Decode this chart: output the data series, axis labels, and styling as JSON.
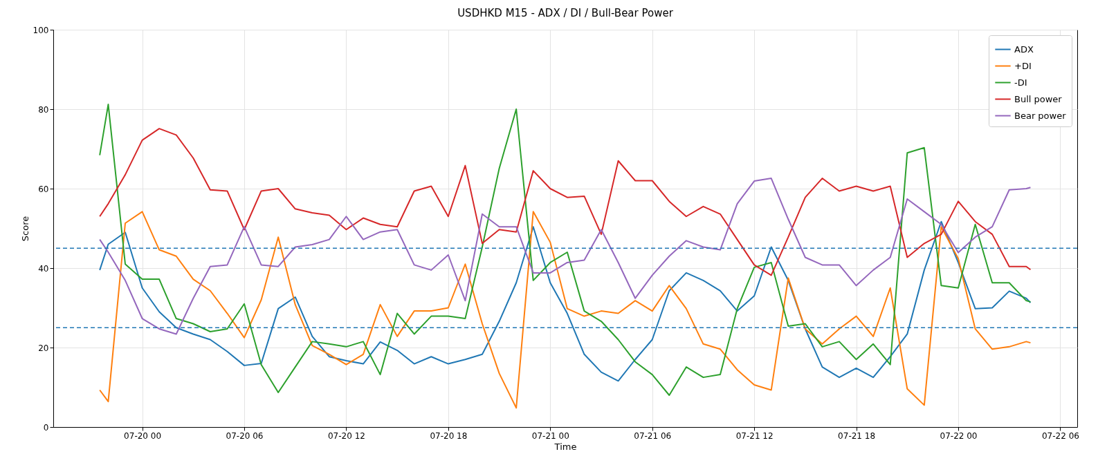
{
  "chart_data": {
    "type": "line",
    "title": "USDHKD M15 - ADX / DI / Bull-Bear Power",
    "xlabel": "Time",
    "ylabel": "Score",
    "x": [
      "--07-19T21:30",
      "--07-19T22:00",
      "--07-19T23:00",
      "--07-20T00:00",
      "--07-20T01:00",
      "--07-20T02:00",
      "--07-20T03:00",
      "--07-20T04:00",
      "--07-20T05:00",
      "--07-20T06:00",
      "--07-20T07:00",
      "--07-20T08:00",
      "--07-20T09:00",
      "--07-20T10:00",
      "--07-20T11:00",
      "--07-20T12:00",
      "--07-20T13:00",
      "--07-20T14:00",
      "--07-20T15:00",
      "--07-20T16:00",
      "--07-20T17:00",
      "--07-20T18:00",
      "--07-20T19:00",
      "--07-20T20:00",
      "--07-20T21:00",
      "--07-20T22:00",
      "--07-20T23:00",
      "--07-21T00:00",
      "--07-21T01:00",
      "--07-21T02:00",
      "--07-21T03:00",
      "--07-21T04:00",
      "--07-21T05:00",
      "--07-21T06:00",
      "--07-21T07:00",
      "--07-21T08:00",
      "--07-21T09:00",
      "--07-21T10:00",
      "--07-21T11:00",
      "--07-21T12:00",
      "--07-21T13:00",
      "--07-21T14:00",
      "--07-21T15:00",
      "--07-21T16:00",
      "--07-21T17:00",
      "--07-21T18:00",
      "--07-21T19:00",
      "--07-21T20:00",
      "--07-21T21:00",
      "--07-21T22:00",
      "--07-21T23:00",
      "--07-22T00:00",
      "--07-22T01:00",
      "--07-22T02:00",
      "--07-22T03:00",
      "--07-22T04:00",
      "--07-22T04:15"
    ],
    "series": [
      {
        "name": "ADX",
        "color": "#1f77b4",
        "values": [
          39.5,
          46,
          49,
          35,
          29,
          25,
          23.4,
          22,
          19,
          15.5,
          16,
          29.8,
          32.7,
          22.8,
          17.7,
          16.7,
          15.9,
          21.4,
          19.3,
          15.9,
          17.7,
          15.9,
          17,
          18.3,
          26.6,
          36.3,
          50.4,
          36.3,
          28.6,
          18.3,
          13.8,
          11.6,
          17,
          22,
          34.3,
          38.8,
          36.9,
          34.3,
          29.2,
          33,
          45.3,
          36.9,
          24.7,
          15.1,
          12.5,
          14.8,
          12.5,
          17.7,
          23.4,
          39.5,
          51.7,
          41.4,
          29.8,
          30,
          34.2,
          32.4,
          31.3
        ]
      },
      {
        "name": "+DI",
        "color": "#ff7f0e",
        "values": [
          9.3,
          6.4,
          51.3,
          54.2,
          44.6,
          43,
          37.2,
          34.3,
          28.6,
          22.5,
          32,
          47.8,
          30.8,
          20.5,
          18.3,
          15.7,
          18.3,
          30.8,
          22.8,
          29.2,
          29.2,
          30,
          41,
          26,
          13.5,
          4.8,
          54.2,
          46.5,
          29.8,
          27.9,
          29.2,
          28.6,
          31.8,
          29.2,
          35.6,
          29.8,
          20.9,
          19.6,
          14.4,
          10.6,
          9.3,
          37.5,
          24.7,
          20.9,
          24.7,
          27.9,
          22.8,
          35,
          9.6,
          5.5,
          50.4,
          42.4,
          24.7,
          19.6,
          20.2,
          21.5,
          21.2
        ]
      },
      {
        "name": "-DI",
        "color": "#2ca02c",
        "values": [
          68.4,
          81.2,
          41,
          37.2,
          37.2,
          27.3,
          26,
          24,
          24.7,
          31,
          15.7,
          8.7,
          15.1,
          21.5,
          20.9,
          20.2,
          21.5,
          13.2,
          28.6,
          23.4,
          27.9,
          27.9,
          27.3,
          45.3,
          65.1,
          80,
          36.9,
          41.4,
          44,
          29.2,
          26.6,
          22,
          16.4,
          13.2,
          8,
          15.1,
          12.5,
          13.2,
          29.8,
          40.2,
          41.4,
          25.4,
          26,
          20.2,
          21.5,
          17,
          20.9,
          15.7,
          69,
          70.3,
          35.6,
          35,
          51,
          36.3,
          36.3,
          31.8,
          31.5
        ]
      },
      {
        "name": "Bull power",
        "color": "#d62728",
        "values": [
          53,
          56.2,
          63.5,
          72.2,
          75.1,
          73.5,
          67.7,
          59.7,
          59.4,
          49.7,
          59.4,
          60,
          54.9,
          53.9,
          53.3,
          49.7,
          52.6,
          51,
          50.4,
          59.4,
          60.6,
          53,
          65.8,
          46.2,
          49.7,
          49.1,
          64.5,
          60,
          57.8,
          58.1,
          48.5,
          67,
          62,
          62,
          56.8,
          53,
          55.5,
          53.6,
          47.2,
          40.8,
          38.2,
          47.8,
          57.8,
          62.6,
          59.4,
          60.6,
          59.4,
          60.6,
          42.7,
          46.2,
          48.5,
          56.8,
          51.7,
          48.5,
          40.4,
          40.4,
          39.6
        ]
      },
      {
        "name": "Bear power",
        "color": "#9467bd",
        "values": [
          47.2,
          44,
          36.9,
          27.3,
          24.7,
          23.4,
          32.4,
          40.4,
          40.8,
          50.4,
          40.8,
          40.4,
          45.3,
          45.9,
          47.2,
          53,
          47.2,
          49.1,
          49.7,
          40.8,
          39.5,
          43.3,
          31.8,
          53.6,
          50.4,
          50.4,
          38.8,
          38.8,
          41.4,
          42,
          49.7,
          41.4,
          32.4,
          38.2,
          43,
          46.9,
          45.3,
          44.6,
          56.2,
          61.9,
          62.6,
          52.3,
          42.7,
          40.8,
          40.8,
          35.6,
          39.5,
          42.7,
          57.4,
          54.2,
          51,
          43.9,
          47.8,
          50.4,
          59.7,
          60,
          60.3
        ]
      }
    ],
    "xlim": [
      "--07-19T18:46",
      "--07-22T07:00"
    ],
    "xticks": [
      {
        "value": "--07-20T00:00",
        "label": "07-20 00"
      },
      {
        "value": "--07-20T06:00",
        "label": "07-20 06"
      },
      {
        "value": "--07-20T12:00",
        "label": "07-20 12"
      },
      {
        "value": "--07-20T18:00",
        "label": "07-20 18"
      },
      {
        "value": "--07-21T00:00",
        "label": "07-21 00"
      },
      {
        "value": "--07-21T06:00",
        "label": "07-21 06"
      },
      {
        "value": "--07-21T12:00",
        "label": "07-21 12"
      },
      {
        "value": "--07-21T18:00",
        "label": "07-21 18"
      },
      {
        "value": "--07-22T00:00",
        "label": "07-22 00"
      },
      {
        "value": "--07-22T06:00",
        "label": "07-22 06"
      }
    ],
    "ylim": [
      0,
      100
    ],
    "yticks": [
      0,
      20,
      40,
      60,
      80,
      100
    ],
    "ref_lines": [
      {
        "axis": "y",
        "value": 45,
        "color": "#1f77b4",
        "line_style": "dashed"
      },
      {
        "axis": "y",
        "value": 25,
        "color": "#1f77b4",
        "line_style": "dashed"
      }
    ],
    "grid": true,
    "legend": "top right",
    "line_style": "solid",
    "marker": "none"
  }
}
